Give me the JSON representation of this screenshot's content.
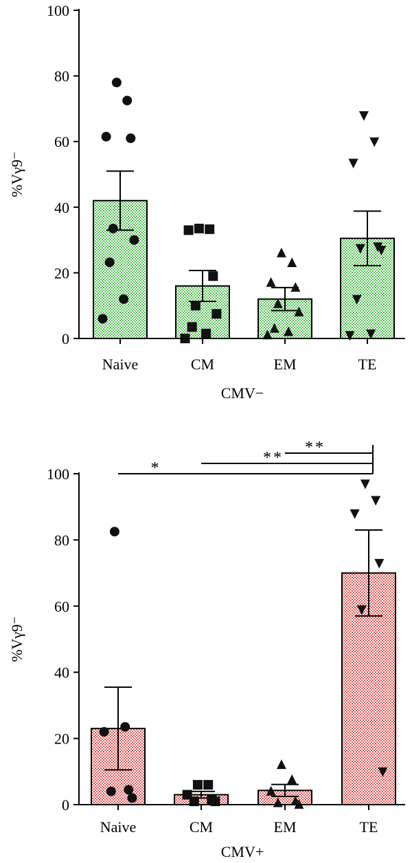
{
  "chart_data": [
    {
      "type": "bar",
      "group_label": "CMV−",
      "ylabel": "%Vγ9⁻",
      "ylim": [
        0,
        100
      ],
      "yticks": [
        0,
        20,
        40,
        60,
        80,
        100
      ],
      "categories": [
        "Naive",
        "CM",
        "EM",
        "TE"
      ],
      "bar_color": "#5cc45c",
      "values": [
        42,
        16,
        12,
        30.5
      ],
      "errors": [
        9,
        4.7,
        3.5,
        8.3
      ],
      "markers": [
        "circle",
        "square",
        "triangle-up",
        "triangle-down"
      ],
      "points": [
        [
          78,
          72.5,
          61.5,
          61,
          33.5,
          30,
          23.2,
          12,
          6
        ],
        [
          33.5,
          33.3,
          33,
          19,
          10,
          7.5,
          3.5,
          1.5,
          0
        ],
        [
          26,
          23,
          17,
          15.5,
          10.5,
          8,
          3,
          2,
          1
        ],
        [
          68,
          60,
          53.5,
          28,
          27.5,
          27,
          12,
          1.5,
          1
        ]
      ],
      "significance": []
    },
    {
      "type": "bar",
      "group_label": "CMV+",
      "ylabel": "%Vγ9⁻",
      "ylim": [
        0,
        100
      ],
      "yticks": [
        0,
        20,
        40,
        60,
        80,
        100
      ],
      "categories": [
        "Naive",
        "CM",
        "EM",
        "TE"
      ],
      "bar_color": "#e85a5a",
      "values": [
        23,
        3,
        4.3,
        70
      ],
      "errors": [
        12.5,
        1,
        1.8,
        13
      ],
      "markers": [
        "circle",
        "square",
        "triangle-up",
        "triangle-down"
      ],
      "points": [
        [
          82.5,
          23.5,
          22,
          4.5,
          4,
          2
        ],
        [
          6,
          6,
          3,
          1.5,
          1,
          1
        ],
        [
          12,
          7.5,
          4,
          1,
          0.5,
          0
        ],
        [
          97,
          92,
          88,
          73,
          59,
          10
        ]
      ],
      "significance": [
        {
          "from": "Naive",
          "to": "TE",
          "label": "*"
        },
        {
          "from": "CM",
          "to": "TE",
          "label": "**"
        },
        {
          "from": "EM",
          "to": "TE",
          "label": "**"
        }
      ]
    }
  ]
}
